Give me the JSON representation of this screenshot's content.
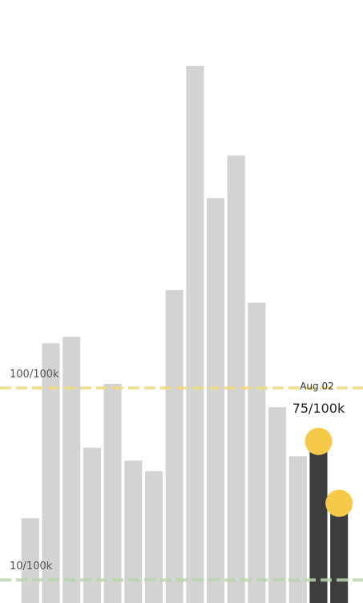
{
  "chart_data": {
    "type": "bar",
    "categories": [
      null,
      null,
      null,
      null,
      null,
      null,
      null,
      null,
      null,
      null,
      null,
      null,
      null,
      null,
      null,
      null
    ],
    "values": [
      39,
      121,
      124,
      72,
      102,
      66,
      61,
      146,
      251,
      189,
      209,
      140,
      91,
      68,
      75,
      46
    ],
    "value_labels": [
      null,
      null,
      null,
      null,
      null,
      null,
      null,
      null,
      null,
      null,
      null,
      null,
      null,
      null,
      "75/100k",
      null
    ],
    "colors": [
      "#d3d3d3",
      "#d3d3d3",
      "#d3d3d3",
      "#d3d3d3",
      "#d3d3d3",
      "#d3d3d3",
      "#d3d3d3",
      "#d3d3d3",
      "#d3d3d3",
      "#d3d3d3",
      "#d3d3d3",
      "#d3d3d3",
      "#d3d3d3",
      "#d3d3d3",
      "#3d3d3d",
      "#3d3d3d"
    ],
    "markers": [
      false,
      false,
      false,
      false,
      false,
      false,
      false,
      false,
      false,
      false,
      false,
      false,
      false,
      false,
      true,
      true
    ],
    "marker_color": "#f7c948",
    "annotation": "Aug 02",
    "ylim": [
      0,
      280
    ],
    "reference_lines": [
      {
        "value": 100,
        "label": "100/100k",
        "color": "#eedc86"
      },
      {
        "value": 10,
        "label": "10/100k",
        "color": "#b9d6ad"
      }
    ]
  }
}
